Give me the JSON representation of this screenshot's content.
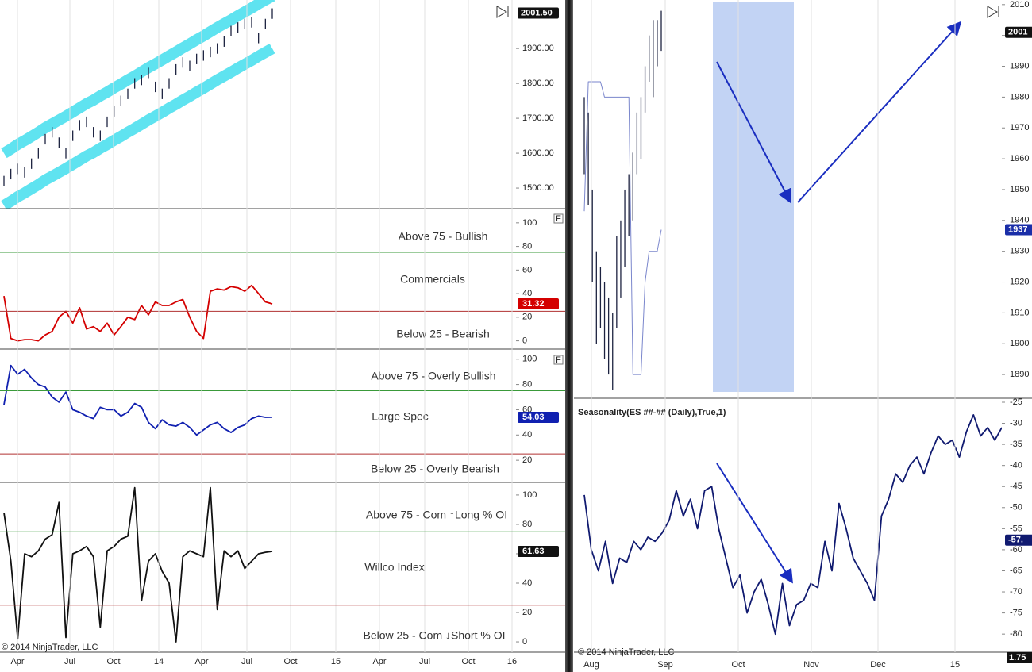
{
  "chart_data": [
    {
      "type": "ohlc",
      "high": [
        1535,
        1555,
        1570,
        1560,
        1585,
        1615,
        1655,
        1675,
        1645,
        1615,
        1665,
        1695,
        1705,
        1675,
        1665,
        1705,
        1735,
        1765,
        1785,
        1815,
        1825,
        1845,
        1805,
        1785,
        1815,
        1855,
        1875,
        1865,
        1885,
        1895,
        1905,
        1915,
        1935,
        1965,
        1975,
        1985,
        1990,
        1945,
        1985,
        2015
      ],
      "low": [
        1505,
        1525,
        1540,
        1530,
        1555,
        1585,
        1625,
        1645,
        1615,
        1585,
        1635,
        1665,
        1675,
        1645,
        1635,
        1675,
        1705,
        1735,
        1755,
        1785,
        1795,
        1815,
        1775,
        1755,
        1785,
        1825,
        1845,
        1835,
        1855,
        1865,
        1875,
        1885,
        1905,
        1935,
        1945,
        1955,
        1960,
        1915,
        1955,
        1985
      ],
      "bar_color": "#1c2240",
      "upper_band": {
        "color": "#5fe3f0",
        "values": [
          1600,
          1612,
          1625,
          1636,
          1648,
          1660,
          1673,
          1684,
          1695,
          1706,
          1718,
          1730,
          1742,
          1752,
          1764,
          1775,
          1787,
          1798,
          1810,
          1821,
          1833,
          1845,
          1856,
          1867,
          1879,
          1890,
          1902,
          1913,
          1925,
          1936,
          1948,
          1960,
          1971,
          1982,
          1994,
          2005,
          2016,
          2028,
          2039,
          2050
        ]
      },
      "lower_band": {
        "color": "#5fe3f0",
        "values": [
          1450,
          1462,
          1475,
          1486,
          1498,
          1510,
          1523,
          1534,
          1545,
          1556,
          1568,
          1580,
          1592,
          1602,
          1614,
          1625,
          1637,
          1648,
          1660,
          1671,
          1683,
          1695,
          1706,
          1717,
          1729,
          1740,
          1752,
          1763,
          1775,
          1786,
          1798,
          1810,
          1821,
          1832,
          1844,
          1855,
          1866,
          1878,
          1889,
          1900
        ]
      },
      "ylim": [
        1441,
        2039
      ],
      "yticks": [
        {
          "value": 1500,
          "label": "1500.00"
        },
        {
          "value": 1600,
          "label": "1600.00"
        },
        {
          "value": 1700,
          "label": "1700.00"
        },
        {
          "value": 1800,
          "label": "1800.00"
        },
        {
          "value": 1900,
          "label": "1900.00"
        }
      ],
      "tags": [
        {
          "value": 2001.5,
          "label": "2001.50",
          "color": "#111111"
        }
      ]
    },
    {
      "type": "line",
      "color": "#d40000",
      "values": [
        38,
        2,
        0,
        1,
        1,
        0,
        5,
        8,
        20,
        25,
        15,
        28,
        10,
        12,
        8,
        15,
        5,
        12,
        20,
        18,
        30,
        22,
        33,
        30,
        30,
        33,
        35,
        20,
        8,
        2,
        42,
        44,
        43,
        46,
        45,
        42,
        47,
        40,
        33,
        31.32
      ],
      "ylim": [
        -7,
        112
      ],
      "yticks": [
        0,
        20,
        40,
        60,
        80,
        100
      ],
      "levels": [
        {
          "value": 75,
          "color": "#3a9a3a"
        },
        {
          "value": 25,
          "color": "#b03030"
        }
      ],
      "annotations": [
        "Above 75 - Bullish",
        "Commercials",
        "Below 25 - Bearish"
      ],
      "button": "F"
    },
    {
      "type": "line",
      "color": "#1020b0",
      "values": [
        64,
        95,
        88,
        92,
        85,
        80,
        78,
        70,
        66,
        74,
        60,
        58,
        55,
        53,
        62,
        60,
        60,
        55,
        58,
        65,
        62,
        50,
        45,
        52,
        48,
        47,
        50,
        46,
        40,
        44,
        48,
        50,
        45,
        42,
        46,
        48,
        53,
        55,
        54,
        54.03
      ],
      "ylim": [
        2.5,
        108
      ],
      "yticks": [
        20,
        40,
        60,
        80,
        100
      ],
      "levels": [
        {
          "value": 75,
          "color": "#3a9a3a"
        },
        {
          "value": 25,
          "color": "#b03030"
        }
      ],
      "annotations": [
        "Above 75 - Overly Bullish",
        "Large Spec",
        "Below 25 - Overly Bearish"
      ],
      "button": "F"
    },
    {
      "type": "line",
      "color": "#111111",
      "values": [
        88,
        55,
        2,
        60,
        58,
        62,
        70,
        73,
        95,
        3,
        60,
        62,
        65,
        58,
        10,
        62,
        65,
        70,
        72,
        105,
        28,
        55,
        60,
        48,
        40,
        0,
        58,
        62,
        60,
        58,
        105,
        22,
        62,
        58,
        62,
        50,
        55,
        60,
        61,
        61.63
      ],
      "ylim": [
        -7,
        108.6
      ],
      "yticks": [
        0,
        20,
        40,
        60,
        80,
        100
      ],
      "levels": [
        {
          "value": 75,
          "color": "#3a9a3a"
        },
        {
          "value": 25,
          "color": "#b03030"
        }
      ],
      "annotations": [
        "Above 75 - Com ↑Long % OI",
        "Willco Index",
        "Below 25 - Com ↓Short % OI"
      ],
      "x_labels": [
        "Apr",
        "Jul",
        "Oct",
        "14",
        "Apr",
        "Jul",
        "Oct",
        "15",
        "Apr",
        "Jul",
        "Oct",
        "16"
      ],
      "copyright": "© 2014 NinjaTrader, LLC"
    },
    {
      "type": "ohlc",
      "high": [
        1980,
        1975,
        1950,
        1930,
        1925,
        1920,
        1915,
        1910,
        1935,
        1940,
        1950,
        1955,
        1962,
        1975,
        1980,
        1990,
        2000,
        2005,
        2005,
        2008
      ],
      "low": [
        1955,
        1945,
        1920,
        1900,
        1905,
        1895,
        1890,
        1885,
        1905,
        1915,
        1925,
        1935,
        1940,
        1955,
        1960,
        1975,
        1985,
        1980,
        1990,
        1995
      ],
      "bar_color": "#1c2240",
      "line": {
        "color": "#7a86cc",
        "values": [
          1943,
          1985,
          1985,
          1985,
          1985,
          1980,
          1980,
          1980,
          1980,
          1980,
          1980,
          1980,
          1890,
          1890,
          1890,
          1920,
          1930,
          1930,
          1930,
          1937
        ]
      },
      "ylim": [
        1882.3,
        2011.5
      ],
      "yticks": [
        1890,
        1900,
        1910,
        1920,
        1930,
        1940,
        1950,
        1960,
        1970,
        1980,
        1990,
        2000,
        2010
      ],
      "tags": [
        {
          "value": 2001,
          "label": "2001",
          "color": "#111111"
        },
        {
          "value": 1937,
          "label": "1937",
          "color": "#1a2ea8"
        }
      ]
    },
    {
      "type": "line",
      "color": "#101a70",
      "title": "Seasonality(ES ##-## (Daily),True,1)",
      "values": [
        -47,
        -60,
        -65,
        -58,
        -68,
        -62,
        -63,
        -58,
        -60,
        -57,
        -58,
        -56,
        -53,
        -46,
        -52,
        -48,
        -55,
        -46,
        -45,
        -55,
        -62,
        -69,
        -66,
        -75,
        -70,
        -67,
        -73,
        -80,
        -68,
        -78,
        -73,
        -72,
        -68,
        -69,
        -58,
        -65,
        -49,
        -55,
        -62,
        -65,
        -68,
        -72,
        -52,
        -48,
        -42,
        -44,
        -40,
        -38,
        -42,
        -37,
        -33,
        -35,
        -34,
        -38,
        -32,
        -28,
        -33,
        -31,
        -34,
        -31
      ],
      "ylim": [
        -84.3,
        -24.06
      ],
      "yticks": [
        -80,
        -75,
        -70,
        -65,
        -60,
        -55,
        -50,
        -45,
        -40,
        -35,
        -30,
        -25
      ],
      "tags": [
        {
          "value": -57.7,
          "label": "-57.",
          "color": "#101a70"
        }
      ],
      "x_labels": [
        "Aug",
        "Sep",
        "Oct",
        "Nov",
        "Dec",
        "15"
      ],
      "copyright": "© 2014 NinjaTrader, LLC",
      "lower_panel_tag": {
        "value": 1.75,
        "label": "1.75"
      }
    }
  ]
}
